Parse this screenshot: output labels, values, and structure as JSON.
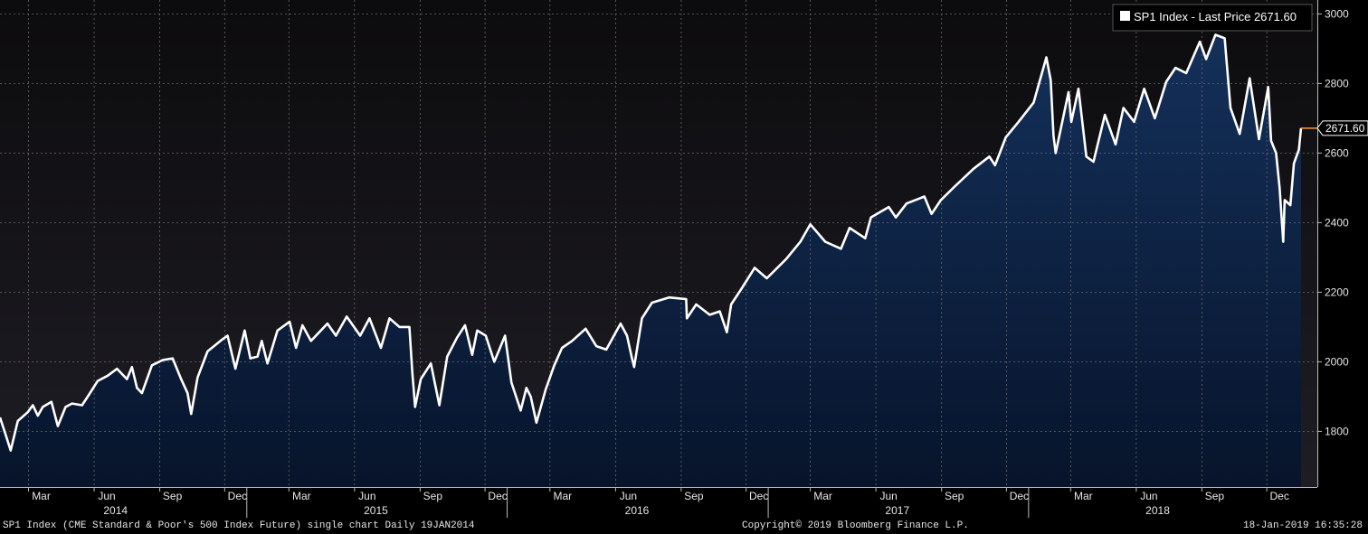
{
  "colors": {
    "background": "#000000",
    "plot_bg_top": "#0c0b0d",
    "plot_bg_bottom": "#1e1d24",
    "area_fill_top": "#14305a",
    "area_fill_bottom": "#07142b",
    "line": "#ffffff",
    "grid": "#6a6a6a",
    "axis_text": "#e6e6e6",
    "last_price_marker": "#ff9b29"
  },
  "footer": {
    "left": "SP1 Index (CME Standard & Poor's 500 Index Future) single chart  Daily 19JAN2014",
    "center": "Copyright© 2019 Bloomberg Finance L.P.",
    "right": "18-Jan-2019 16:35:28"
  },
  "chart_data": {
    "type": "area",
    "legend": {
      "text": "SP1 Index - Last Price 2671.60",
      "placement": "top-right"
    },
    "last_price_label": "2671.60",
    "y_axis": {
      "side": "right",
      "ylim": [
        1640,
        3040
      ],
      "ticks": [
        1800,
        2000,
        2200,
        2400,
        2600,
        2800,
        3000
      ],
      "tick_labels": [
        "1800",
        "2000",
        "2200",
        "2400",
        "2600",
        "2800",
        "3000"
      ]
    },
    "x_axis": {
      "xlim": [
        "2014-01-20",
        "2019-01-18"
      ],
      "month_ticks": [
        {
          "date": "2014-03-01",
          "label": "Mar"
        },
        {
          "date": "2014-06-01",
          "label": "Jun"
        },
        {
          "date": "2014-09-01",
          "label": "Sep"
        },
        {
          "date": "2014-12-01",
          "label": "Dec"
        },
        {
          "date": "2015-03-01",
          "label": "Mar"
        },
        {
          "date": "2015-06-01",
          "label": "Jun"
        },
        {
          "date": "2015-09-01",
          "label": "Sep"
        },
        {
          "date": "2015-12-01",
          "label": "Dec"
        },
        {
          "date": "2016-03-01",
          "label": "Mar"
        },
        {
          "date": "2016-06-01",
          "label": "Jun"
        },
        {
          "date": "2016-09-01",
          "label": "Sep"
        },
        {
          "date": "2016-12-01",
          "label": "Dec"
        },
        {
          "date": "2017-03-01",
          "label": "Mar"
        },
        {
          "date": "2017-06-01",
          "label": "Jun"
        },
        {
          "date": "2017-09-01",
          "label": "Sep"
        },
        {
          "date": "2017-12-01",
          "label": "Dec"
        },
        {
          "date": "2018-03-01",
          "label": "Mar"
        },
        {
          "date": "2018-06-01",
          "label": "Jun"
        },
        {
          "date": "2018-09-01",
          "label": "Sep"
        },
        {
          "date": "2018-12-01",
          "label": "Dec"
        }
      ],
      "year_labels": [
        {
          "date": "2014-07-01",
          "label": "2014"
        },
        {
          "date": "2015-07-01",
          "label": "2015"
        },
        {
          "date": "2016-07-01",
          "label": "2016"
        },
        {
          "date": "2017-07-01",
          "label": "2017"
        },
        {
          "date": "2018-07-01",
          "label": "2018"
        }
      ],
      "year_separators": [
        "2015-01-01",
        "2016-01-01",
        "2017-01-01",
        "2018-01-01"
      ]
    },
    "grid": true,
    "series": [
      {
        "name": "SP1 Index - Last Price",
        "points": [
          [
            "2014-01-20",
            1840
          ],
          [
            "2014-01-28",
            1790
          ],
          [
            "2014-02-04",
            1745
          ],
          [
            "2014-02-14",
            1830
          ],
          [
            "2014-02-28",
            1855
          ],
          [
            "2014-03-07",
            1875
          ],
          [
            "2014-03-14",
            1845
          ],
          [
            "2014-03-21",
            1870
          ],
          [
            "2014-04-02",
            1885
          ],
          [
            "2014-04-11",
            1815
          ],
          [
            "2014-04-22",
            1870
          ],
          [
            "2014-05-01",
            1880
          ],
          [
            "2014-05-15",
            1875
          ],
          [
            "2014-05-23",
            1900
          ],
          [
            "2014-06-06",
            1945
          ],
          [
            "2014-06-20",
            1960
          ],
          [
            "2014-07-03",
            1980
          ],
          [
            "2014-07-17",
            1950
          ],
          [
            "2014-07-24",
            1985
          ],
          [
            "2014-07-31",
            1925
          ],
          [
            "2014-08-07",
            1910
          ],
          [
            "2014-08-21",
            1990
          ],
          [
            "2014-09-05",
            2005
          ],
          [
            "2014-09-19",
            2010
          ],
          [
            "2014-10-01",
            1950
          ],
          [
            "2014-10-10",
            1910
          ],
          [
            "2014-10-15",
            1850
          ],
          [
            "2014-10-24",
            1955
          ],
          [
            "2014-11-07",
            2030
          ],
          [
            "2014-11-28",
            2065
          ],
          [
            "2014-12-05",
            2075
          ],
          [
            "2014-12-16",
            1980
          ],
          [
            "2014-12-29",
            2090
          ],
          [
            "2015-01-06",
            2010
          ],
          [
            "2015-01-16",
            2015
          ],
          [
            "2015-01-22",
            2060
          ],
          [
            "2015-01-30",
            1995
          ],
          [
            "2015-02-13",
            2090
          ],
          [
            "2015-03-02",
            2115
          ],
          [
            "2015-03-11",
            2040
          ],
          [
            "2015-03-20",
            2105
          ],
          [
            "2015-04-01",
            2060
          ],
          [
            "2015-04-24",
            2110
          ],
          [
            "2015-05-06",
            2075
          ],
          [
            "2015-05-21",
            2130
          ],
          [
            "2015-06-09",
            2075
          ],
          [
            "2015-06-22",
            2125
          ],
          [
            "2015-07-08",
            2040
          ],
          [
            "2015-07-20",
            2125
          ],
          [
            "2015-08-03",
            2100
          ],
          [
            "2015-08-17",
            2100
          ],
          [
            "2015-08-21",
            1970
          ],
          [
            "2015-08-25",
            1870
          ],
          [
            "2015-09-02",
            1950
          ],
          [
            "2015-09-16",
            1995
          ],
          [
            "2015-09-28",
            1875
          ],
          [
            "2015-10-09",
            2015
          ],
          [
            "2015-10-23",
            2070
          ],
          [
            "2015-11-03",
            2105
          ],
          [
            "2015-11-13",
            2020
          ],
          [
            "2015-11-20",
            2090
          ],
          [
            "2015-12-02",
            2075
          ],
          [
            "2015-12-14",
            2000
          ],
          [
            "2015-12-29",
            2075
          ],
          [
            "2016-01-07",
            1940
          ],
          [
            "2016-01-20",
            1860
          ],
          [
            "2016-01-28",
            1925
          ],
          [
            "2016-02-03",
            1900
          ],
          [
            "2016-02-11",
            1825
          ],
          [
            "2016-02-24",
            1920
          ],
          [
            "2016-03-07",
            1990
          ],
          [
            "2016-03-18",
            2040
          ],
          [
            "2016-04-01",
            2060
          ],
          [
            "2016-04-20",
            2095
          ],
          [
            "2016-05-05",
            2045
          ],
          [
            "2016-05-19",
            2035
          ],
          [
            "2016-06-08",
            2110
          ],
          [
            "2016-06-17",
            2075
          ],
          [
            "2016-06-24",
            2010
          ],
          [
            "2016-06-27",
            1985
          ],
          [
            "2016-07-08",
            2125
          ],
          [
            "2016-07-22",
            2170
          ],
          [
            "2016-08-15",
            2185
          ],
          [
            "2016-09-08",
            2180
          ],
          [
            "2016-09-09",
            2125
          ],
          [
            "2016-09-22",
            2165
          ],
          [
            "2016-10-11",
            2135
          ],
          [
            "2016-10-25",
            2145
          ],
          [
            "2016-11-04",
            2085
          ],
          [
            "2016-11-10",
            2165
          ],
          [
            "2016-11-23",
            2205
          ],
          [
            "2016-12-13",
            2270
          ],
          [
            "2016-12-30",
            2240
          ],
          [
            "2017-01-26",
            2295
          ],
          [
            "2017-02-15",
            2345
          ],
          [
            "2017-03-01",
            2395
          ],
          [
            "2017-03-22",
            2345
          ],
          [
            "2017-04-13",
            2325
          ],
          [
            "2017-04-25",
            2385
          ],
          [
            "2017-05-17",
            2355
          ],
          [
            "2017-05-25",
            2415
          ],
          [
            "2017-06-19",
            2445
          ],
          [
            "2017-06-29",
            2415
          ],
          [
            "2017-07-14",
            2455
          ],
          [
            "2017-08-08",
            2475
          ],
          [
            "2017-08-18",
            2425
          ],
          [
            "2017-08-31",
            2465
          ],
          [
            "2017-09-20",
            2505
          ],
          [
            "2017-10-16",
            2555
          ],
          [
            "2017-11-07",
            2590
          ],
          [
            "2017-11-15",
            2565
          ],
          [
            "2017-11-30",
            2645
          ],
          [
            "2017-12-18",
            2690
          ],
          [
            "2018-01-08",
            2745
          ],
          [
            "2018-01-26",
            2875
          ],
          [
            "2018-02-01",
            2810
          ],
          [
            "2018-02-05",
            2650
          ],
          [
            "2018-02-08",
            2600
          ],
          [
            "2018-02-26",
            2775
          ],
          [
            "2018-03-02",
            2690
          ],
          [
            "2018-03-12",
            2785
          ],
          [
            "2018-03-23",
            2590
          ],
          [
            "2018-04-02",
            2575
          ],
          [
            "2018-04-18",
            2710
          ],
          [
            "2018-05-03",
            2625
          ],
          [
            "2018-05-14",
            2730
          ],
          [
            "2018-05-29",
            2690
          ],
          [
            "2018-06-12",
            2785
          ],
          [
            "2018-06-27",
            2700
          ],
          [
            "2018-07-13",
            2805
          ],
          [
            "2018-07-26",
            2845
          ],
          [
            "2018-08-10",
            2830
          ],
          [
            "2018-08-29",
            2920
          ],
          [
            "2018-09-07",
            2870
          ],
          [
            "2018-09-20",
            2940
          ],
          [
            "2018-10-03",
            2930
          ],
          [
            "2018-10-11",
            2730
          ],
          [
            "2018-10-24",
            2655
          ],
          [
            "2018-11-07",
            2815
          ],
          [
            "2018-11-20",
            2640
          ],
          [
            "2018-12-03",
            2790
          ],
          [
            "2018-12-07",
            2635
          ],
          [
            "2018-12-14",
            2600
          ],
          [
            "2018-12-19",
            2500
          ],
          [
            "2018-12-24",
            2345
          ],
          [
            "2018-12-26",
            2465
          ],
          [
            "2019-01-03",
            2450
          ],
          [
            "2019-01-08",
            2570
          ],
          [
            "2019-01-15",
            2610
          ],
          [
            "2019-01-18",
            2671.6
          ]
        ]
      }
    ]
  }
}
